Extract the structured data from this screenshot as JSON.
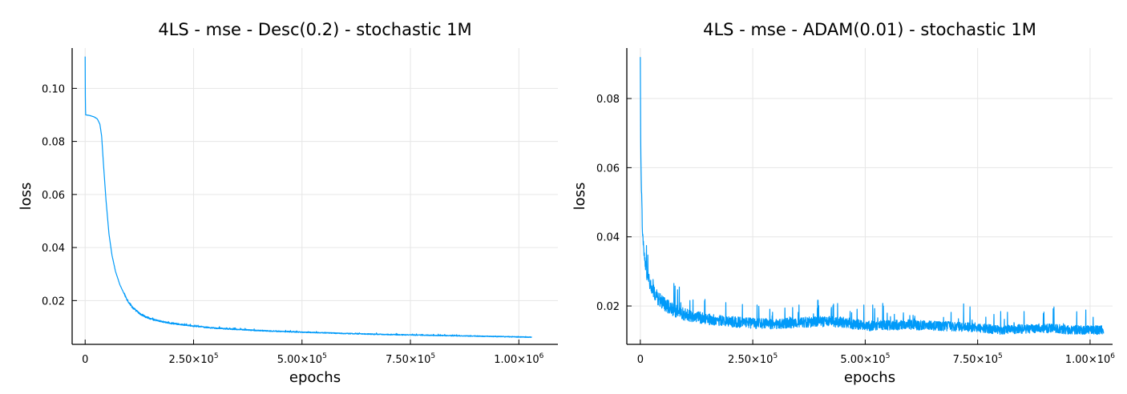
{
  "chart_data": [
    {
      "type": "line",
      "title": "4LS - mse - Desc(0.2) - stochastic 1M",
      "xlabel": "epochs",
      "ylabel": "loss",
      "xlim": [
        -30000,
        1090000
      ],
      "ylim": [
        0.0035,
        0.1152
      ],
      "grid": true,
      "legend": "none",
      "xticks": [
        {
          "value": 0,
          "label": "0",
          "mant": "0",
          "exp": ""
        },
        {
          "value": 250000,
          "label": "2.50×10^5",
          "mant": "2.50×10",
          "exp": "5"
        },
        {
          "value": 500000,
          "label": "5.00×10^5",
          "mant": "5.00×10",
          "exp": "5"
        },
        {
          "value": 750000,
          "label": "7.50×10^5",
          "mant": "7.50×10",
          "exp": "5"
        },
        {
          "value": 1000000,
          "label": "1.00×10^6",
          "mant": "1.00×10",
          "exp": "6"
        }
      ],
      "yticks": [
        {
          "value": 0.02,
          "label": "0.02"
        },
        {
          "value": 0.04,
          "label": "0.04"
        },
        {
          "value": 0.06,
          "label": "0.06"
        },
        {
          "value": 0.08,
          "label": "0.08"
        },
        {
          "value": 0.1,
          "label": "0.10"
        }
      ],
      "series": [
        {
          "name": "loss",
          "color": "#009af9",
          "noise": 0.0009,
          "x": [
            0,
            200,
            1000,
            10000,
            20000,
            28000,
            34000,
            38000,
            42000,
            48000,
            55000,
            62000,
            70000,
            80000,
            90000,
            100000,
            110000,
            125000,
            140000,
            160000,
            180000,
            200000,
            250000,
            300000,
            400000,
            500000,
            600000,
            700000,
            800000,
            900000,
            1030000
          ],
          "y": [
            0.112,
            0.1,
            0.09,
            0.0898,
            0.0893,
            0.0885,
            0.0865,
            0.082,
            0.072,
            0.058,
            0.045,
            0.037,
            0.031,
            0.026,
            0.0225,
            0.0195,
            0.0173,
            0.0152,
            0.0138,
            0.0127,
            0.012,
            0.0114,
            0.0104,
            0.0096,
            0.0087,
            0.0081,
            0.0076,
            0.0072,
            0.0069,
            0.0066,
            0.0062
          ]
        }
      ]
    },
    {
      "type": "line",
      "title": "4LS - mse - ADAM(0.01) - stochastic 1M",
      "xlabel": "epochs",
      "ylabel": "loss",
      "xlim": [
        -30000,
        1050000
      ],
      "ylim": [
        0.0089,
        0.0946
      ],
      "grid": true,
      "legend": "none",
      "xticks": [
        {
          "value": 0,
          "label": "0",
          "mant": "0",
          "exp": ""
        },
        {
          "value": 250000,
          "label": "2.50×10^5",
          "mant": "2.50×10",
          "exp": "5"
        },
        {
          "value": 500000,
          "label": "5.00×10^5",
          "mant": "5.00×10",
          "exp": "5"
        },
        {
          "value": 750000,
          "label": "7.50×10^5",
          "mant": "7.50×10",
          "exp": "5"
        },
        {
          "value": 1000000,
          "label": "1.00×10^6",
          "mant": "1.00×10",
          "exp": "6"
        }
      ],
      "yticks": [
        {
          "value": 0.02,
          "label": "0.02"
        },
        {
          "value": 0.04,
          "label": "0.04"
        },
        {
          "value": 0.06,
          "label": "0.06"
        },
        {
          "value": 0.08,
          "label": "0.08"
        }
      ],
      "series": [
        {
          "name": "loss",
          "color": "#009af9",
          "noise": 0.004,
          "x": [
            0,
            1000,
            3000,
            6000,
            10000,
            15000,
            25000,
            40000,
            60000,
            80000,
            100000,
            130000,
            160000,
            200000,
            250000,
            300000,
            350000,
            400000,
            450000,
            500000,
            550000,
            600000,
            650000,
            700000,
            750000,
            800000,
            850000,
            900000,
            950000,
            1000000,
            1030000
          ],
          "y": [
            0.092,
            0.065,
            0.05,
            0.038,
            0.033,
            0.029,
            0.025,
            0.022,
            0.02,
            0.0185,
            0.0175,
            0.0167,
            0.016,
            0.0155,
            0.015,
            0.0148,
            0.0152,
            0.0155,
            0.0153,
            0.0142,
            0.0144,
            0.0146,
            0.0143,
            0.0141,
            0.0138,
            0.013,
            0.0134,
            0.0136,
            0.0132,
            0.013,
            0.0131
          ]
        }
      ]
    }
  ]
}
